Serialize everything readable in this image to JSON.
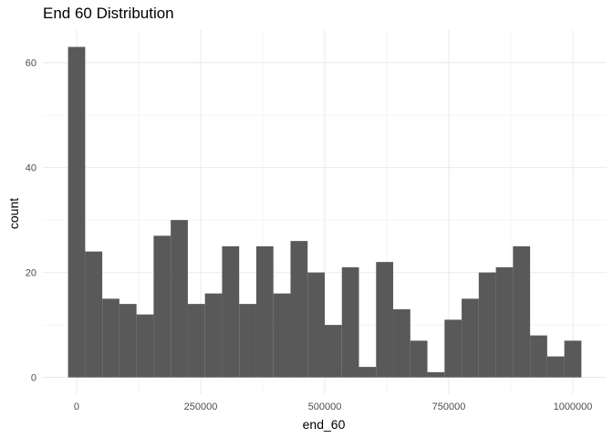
{
  "chart_data": {
    "type": "bar",
    "title": "End 60 Distribution",
    "xlabel": "end_60",
    "ylabel": "count",
    "bin_width": 34483,
    "bin_centers": [
      0,
      34483,
      68966,
      103448,
      137931,
      172414,
      206897,
      241379,
      275862,
      310345,
      344828,
      379310,
      413793,
      448276,
      482759,
      517241,
      551724,
      586207,
      620690,
      655172,
      689655,
      724138,
      758621,
      793103,
      827586,
      862069,
      896552,
      931034,
      965517,
      1000000
    ],
    "values": [
      63,
      24,
      15,
      14,
      12,
      27,
      30,
      14,
      16,
      25,
      14,
      25,
      16,
      26,
      20,
      10,
      21,
      2,
      22,
      13,
      7,
      1,
      11,
      15,
      20,
      21,
      25,
      8,
      4,
      7
    ],
    "xlim": [
      -68000,
      1068000
    ],
    "ylim": [
      -3.2,
      66.2
    ],
    "x_ticks": [
      0,
      250000,
      500000,
      750000,
      1000000
    ],
    "x_tick_labels": [
      "0",
      "250000",
      "500000",
      "750000",
      "1000000"
    ],
    "y_ticks": [
      0,
      20,
      40,
      60
    ],
    "y_tick_labels": [
      "0",
      "20",
      "40",
      "60"
    ],
    "grid": true,
    "bar_color": "#595959",
    "grid_color": "#ebebeb",
    "background": "#ffffff"
  }
}
